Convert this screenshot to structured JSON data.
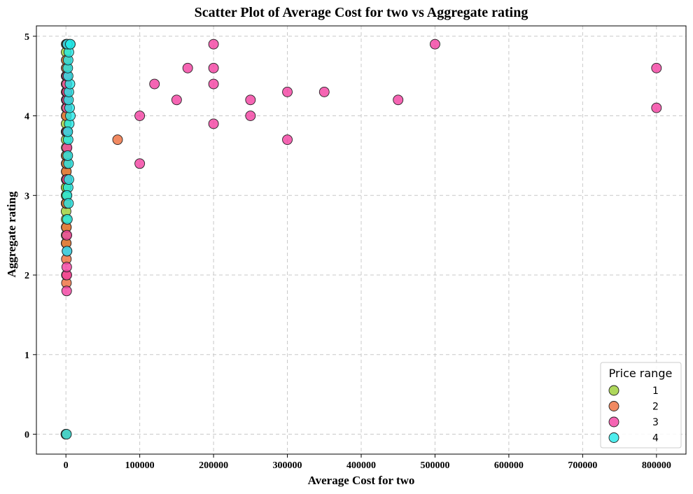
{
  "chart_data": {
    "type": "scatter",
    "title": "Scatter Plot of Average Cost for two vs Aggregate rating",
    "xlabel": "Average Cost for two",
    "ylabel": "Aggregate rating",
    "xlim": [
      -40000,
      840000
    ],
    "ylim": [
      -0.25,
      5.13
    ],
    "x_ticks": [
      0,
      100000,
      200000,
      300000,
      400000,
      500000,
      600000,
      700000,
      800000
    ],
    "y_ticks": [
      0,
      1,
      2,
      3,
      4,
      5
    ],
    "grid": true,
    "legend": {
      "title": "Price range",
      "position": "bottom-right"
    },
    "series": [
      {
        "name": "1",
        "color": "#9ACD32",
        "points": [
          [
            0,
            0
          ],
          [
            150,
            0
          ],
          [
            300,
            0
          ],
          [
            200,
            2.4
          ],
          [
            250,
            2.5
          ],
          [
            300,
            2.6
          ],
          [
            350,
            2.7
          ],
          [
            200,
            2.8
          ],
          [
            300,
            2.9
          ],
          [
            250,
            3.0
          ],
          [
            300,
            3.1
          ],
          [
            400,
            3.2
          ],
          [
            350,
            3.3
          ],
          [
            300,
            3.4
          ],
          [
            250,
            3.5
          ],
          [
            350,
            3.6
          ],
          [
            300,
            3.7
          ],
          [
            200,
            3.8
          ],
          [
            250,
            3.9
          ],
          [
            300,
            4.0
          ],
          [
            350,
            4.1
          ],
          [
            400,
            4.2
          ],
          [
            300,
            4.3
          ],
          [
            250,
            4.4
          ],
          [
            300,
            4.5
          ],
          [
            350,
            4.6
          ],
          [
            400,
            4.7
          ],
          [
            300,
            4.8
          ],
          [
            350,
            4.9
          ],
          [
            250,
            3.1
          ],
          [
            300,
            3.0
          ],
          [
            200,
            2.9
          ]
        ]
      },
      {
        "name": "2",
        "color": "#EE6C3A",
        "points": [
          [
            0,
            0
          ],
          [
            500,
            0
          ],
          [
            700,
            1.9
          ],
          [
            600,
            2.2
          ],
          [
            500,
            2.4
          ],
          [
            700,
            2.6
          ],
          [
            600,
            3.3
          ],
          [
            800,
            3.4
          ],
          [
            700,
            3.5
          ],
          [
            600,
            4.0
          ],
          [
            700,
            4.2
          ],
          [
            800,
            4.5
          ],
          [
            700,
            4.6
          ],
          [
            600,
            4.7
          ],
          [
            500,
            4.3
          ],
          [
            800,
            3.8
          ],
          [
            700,
            2.9
          ],
          [
            900,
            3.2
          ],
          [
            600,
            2.0
          ],
          [
            70000,
            3.7
          ]
        ]
      },
      {
        "name": "3",
        "color": "#F23FA0",
        "points": [
          [
            1000,
            1.8
          ],
          [
            1200,
            2.0
          ],
          [
            1100,
            2.1
          ],
          [
            1500,
            2.3
          ],
          [
            1300,
            2.5
          ],
          [
            1400,
            3.2
          ],
          [
            1500,
            3.6
          ],
          [
            1200,
            3.8
          ],
          [
            1400,
            4.1
          ],
          [
            1300,
            4.2
          ],
          [
            1500,
            4.3
          ],
          [
            1200,
            4.4
          ],
          [
            1400,
            4.5
          ],
          [
            1300,
            4.9
          ],
          [
            100000,
            3.4
          ],
          [
            100000,
            4.0
          ],
          [
            120000,
            4.4
          ],
          [
            150000,
            4.2
          ],
          [
            165000,
            4.6
          ],
          [
            200000,
            3.9
          ],
          [
            200000,
            4.4
          ],
          [
            200000,
            4.6
          ],
          [
            200000,
            4.9
          ],
          [
            250000,
            4.0
          ],
          [
            250000,
            4.2
          ],
          [
            300000,
            3.7
          ],
          [
            300000,
            4.3
          ],
          [
            350000,
            4.3
          ],
          [
            450000,
            4.2
          ],
          [
            500000,
            4.9
          ],
          [
            800000,
            4.1
          ],
          [
            800000,
            4.6
          ]
        ]
      },
      {
        "name": "4",
        "color": "#22E8E8",
        "points": [
          [
            800,
            0
          ],
          [
            1500,
            2.3
          ],
          [
            2000,
            2.7
          ],
          [
            3000,
            3.1
          ],
          [
            4000,
            3.2
          ],
          [
            3500,
            3.4
          ],
          [
            2500,
            3.5
          ],
          [
            3000,
            3.7
          ],
          [
            4500,
            3.9
          ],
          [
            6000,
            4.0
          ],
          [
            5000,
            4.1
          ],
          [
            3500,
            4.2
          ],
          [
            4000,
            4.3
          ],
          [
            5500,
            4.4
          ],
          [
            3000,
            4.5
          ],
          [
            2500,
            4.6
          ],
          [
            3000,
            4.7
          ],
          [
            4000,
            4.8
          ],
          [
            5000,
            4.9
          ],
          [
            2000,
            4.9
          ],
          [
            1500,
            3.0
          ],
          [
            2500,
            3.8
          ],
          [
            3500,
            2.9
          ],
          [
            6000,
            4.9
          ]
        ]
      }
    ]
  }
}
